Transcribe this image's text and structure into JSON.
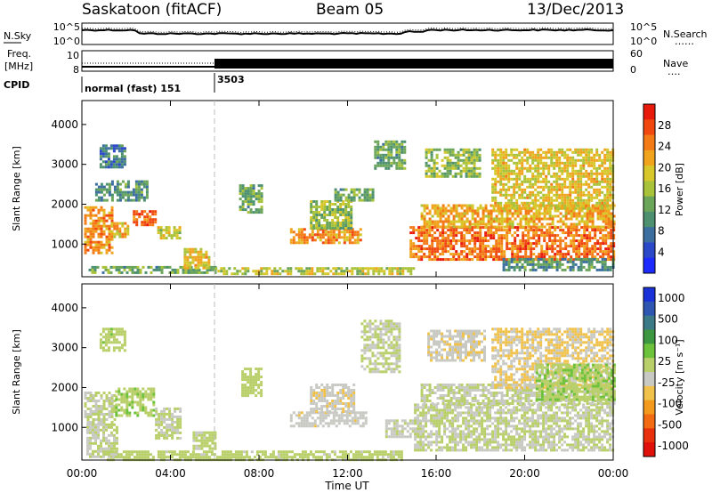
{
  "header": {
    "station": "Saskatoon (fitACF)",
    "beam": "Beam 05",
    "date": "13/Dec/2013"
  },
  "noise_panel": {
    "left_label": "N.Sky",
    "left_ticks": [
      "10^5",
      "10^0"
    ],
    "right_ticks": [
      "10^5",
      "10^0"
    ],
    "right_label": "N.Search",
    "right_legend_line": "……"
  },
  "freq_panel": {
    "left_label_1": "Freq.",
    "left_label_2": "[MHz]",
    "left_ticks": [
      "10",
      "8"
    ],
    "right_ticks": [
      "60",
      "0"
    ],
    "right_label": "Nave",
    "right_legend_line": "…."
  },
  "cpid": {
    "label": "CPID",
    "segments": [
      {
        "name": "normal (fast) 151",
        "start_hour": 0,
        "end_hour": 6
      },
      {
        "name": "3503",
        "start_hour": 6,
        "end_hour": 24
      }
    ]
  },
  "x_axis": {
    "title": "Time UT",
    "ticks": [
      "00:00",
      "04:00",
      "08:00",
      "12:00",
      "16:00",
      "20:00",
      "00:00"
    ],
    "range_hours": [
      0,
      24
    ]
  },
  "chart_data": [
    {
      "type": "heatmap",
      "name": "power",
      "ylabel": "Slant Range [km]",
      "yticks": [
        "1000",
        "2000",
        "3000",
        "4000"
      ],
      "ylim": [
        180,
        4600
      ],
      "xlim_hours": [
        0,
        24
      ],
      "colorbar": {
        "label": "Power [dB]",
        "ticks": [
          "4",
          "8",
          "12",
          "16",
          "20",
          "24",
          "28"
        ],
        "range": [
          0,
          30
        ],
        "colors": [
          "#1d2bff",
          "#2b48c8",
          "#3c6fa0",
          "#4d9170",
          "#6aa55a",
          "#a8c23a",
          "#d8c72a",
          "#f0a41e",
          "#f37a16",
          "#f0480f",
          "#e81a0c"
        ]
      },
      "regions": [
        {
          "t0": 0.1,
          "t1": 1.4,
          "r0": 750,
          "r1": 1950,
          "level": 22
        },
        {
          "t0": 1.3,
          "t1": 2.1,
          "r0": 1150,
          "r1": 1550,
          "level": 20
        },
        {
          "t0": 2.3,
          "t1": 3.3,
          "r0": 1450,
          "r1": 1850,
          "level": 24
        },
        {
          "t0": 3.4,
          "t1": 4.4,
          "r0": 1150,
          "r1": 1450,
          "level": 16
        },
        {
          "t0": 0.6,
          "t1": 3.0,
          "r0": 2100,
          "r1": 2600,
          "level": 10
        },
        {
          "t0": 0.8,
          "t1": 2.0,
          "r0": 2900,
          "r1": 3500,
          "level": 8
        },
        {
          "t0": 0.3,
          "t1": 6.0,
          "r0": 250,
          "r1": 450,
          "level": 12
        },
        {
          "t0": 4.6,
          "t1": 5.8,
          "r0": 400,
          "r1": 900,
          "level": 18
        },
        {
          "t0": 6.0,
          "t1": 15.0,
          "r0": 220,
          "r1": 420,
          "level": 16
        },
        {
          "t0": 7.1,
          "t1": 8.1,
          "r0": 1800,
          "r1": 2500,
          "level": 12
        },
        {
          "t0": 9.4,
          "t1": 12.6,
          "r0": 1050,
          "r1": 1400,
          "level": 22
        },
        {
          "t0": 10.3,
          "t1": 12.2,
          "r0": 1400,
          "r1": 2100,
          "level": 14
        },
        {
          "t0": 11.4,
          "t1": 13.2,
          "r0": 2100,
          "r1": 2400,
          "level": 12
        },
        {
          "t0": 13.2,
          "t1": 14.6,
          "r0": 2900,
          "r1": 3600,
          "level": 12
        },
        {
          "t0": 14.8,
          "t1": 24.0,
          "r0": 600,
          "r1": 1450,
          "level": 24
        },
        {
          "t0": 15.3,
          "t1": 24.0,
          "r0": 1450,
          "r1": 2000,
          "level": 20
        },
        {
          "t0": 15.5,
          "t1": 18.0,
          "r0": 2700,
          "r1": 3400,
          "level": 14
        },
        {
          "t0": 18.5,
          "t1": 24.0,
          "r0": 1900,
          "r1": 3400,
          "level": 18
        },
        {
          "t0": 19.0,
          "t1": 24.0,
          "r0": 350,
          "r1": 650,
          "level": 10
        }
      ]
    },
    {
      "type": "heatmap",
      "name": "velocity",
      "ylabel": "Slant Range [km]",
      "yticks": [
        "1000",
        "2000",
        "3000",
        "4000"
      ],
      "ylim": [
        180,
        4600
      ],
      "xlim_hours": [
        0,
        24
      ],
      "colorbar": {
        "label": "Velocity [m s⁻¹]",
        "ticks": [
          "1000",
          "500",
          "100",
          "25",
          "-25",
          "-100",
          "-500",
          "-1000"
        ],
        "range": [
          -1200,
          1200
        ],
        "colors": [
          "#1a32d8",
          "#2f56b0",
          "#3b7a86",
          "#3d9640",
          "#6cc23a",
          "#b8cf6a",
          "#c9c9c4",
          "#f0c24c",
          "#f2991e",
          "#f26a12",
          "#e8300c",
          "#e0100a"
        ]
      },
      "regions": [
        {
          "t0": 0.1,
          "t1": 1.5,
          "r0": 1100,
          "r1": 1900,
          "level": 0
        },
        {
          "t0": 0.2,
          "t1": 1.6,
          "r0": 250,
          "r1": 1100,
          "level": 0
        },
        {
          "t0": 1.5,
          "t1": 3.3,
          "r0": 1300,
          "r1": 2000,
          "level": 150
        },
        {
          "t0": 3.3,
          "t1": 4.5,
          "r0": 700,
          "r1": 1500,
          "level": 0
        },
        {
          "t0": 0.8,
          "t1": 2.0,
          "r0": 2900,
          "r1": 3500,
          "level": 120
        },
        {
          "t0": 1.0,
          "t1": 14.5,
          "r0": 200,
          "r1": 420,
          "level": 80
        },
        {
          "t0": 5.0,
          "t1": 6.0,
          "r0": 450,
          "r1": 900,
          "level": 60
        },
        {
          "t0": 7.2,
          "t1": 8.1,
          "r0": 1800,
          "r1": 2500,
          "level": 100
        },
        {
          "t0": 9.4,
          "t1": 12.8,
          "r0": 1050,
          "r1": 1400,
          "level": -120
        },
        {
          "t0": 10.3,
          "t1": 12.3,
          "r0": 1400,
          "r1": 2100,
          "level": -150
        },
        {
          "t0": 12.6,
          "t1": 14.4,
          "r0": 2400,
          "r1": 3700,
          "level": 0
        },
        {
          "t0": 13.7,
          "t1": 15.2,
          "r0": 750,
          "r1": 1200,
          "level": -60
        },
        {
          "t0": 15.0,
          "t1": 24.0,
          "r0": 400,
          "r1": 1600,
          "level": 0
        },
        {
          "t0": 15.3,
          "t1": 24.0,
          "r0": 1600,
          "r1": 2100,
          "level": 0
        },
        {
          "t0": 15.6,
          "t1": 18.2,
          "r0": 2700,
          "r1": 3450,
          "level": -160
        },
        {
          "t0": 18.5,
          "t1": 24.0,
          "r0": 2000,
          "r1": 3500,
          "level": -200
        },
        {
          "t0": 20.5,
          "t1": 24.0,
          "r0": 1700,
          "r1": 2600,
          "level": 160
        }
      ]
    }
  ]
}
